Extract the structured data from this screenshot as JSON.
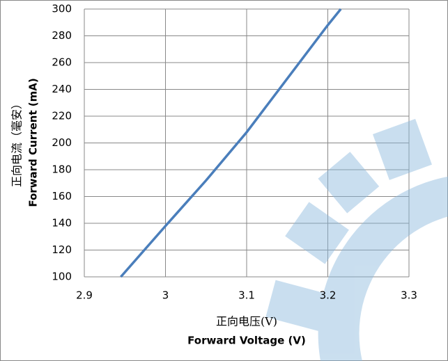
{
  "chart_data": {
    "type": "line",
    "y_label_cn": "正向电流（毫安）",
    "y_label": "Forward Current (mA)",
    "x_label_cn": "正向电压(V)",
    "x_label": "Forward Voltage (V)",
    "x": [
      2.945,
      3.0,
      3.05,
      3.1,
      3.15,
      3.2,
      3.216
    ],
    "series": [
      {
        "color": "#4a7ebb",
        "values": [
          100,
          138,
          172,
          208,
          248,
          288,
          300
        ]
      }
    ],
    "xlim": [
      2.9,
      3.3
    ],
    "xticks": [
      2.9,
      3,
      3.1,
      3.2,
      3.3
    ],
    "ylim": [
      100,
      300
    ],
    "yticks": [
      100,
      120,
      140,
      160,
      180,
      200,
      220,
      240,
      260,
      280,
      300
    ],
    "grid": true
  }
}
